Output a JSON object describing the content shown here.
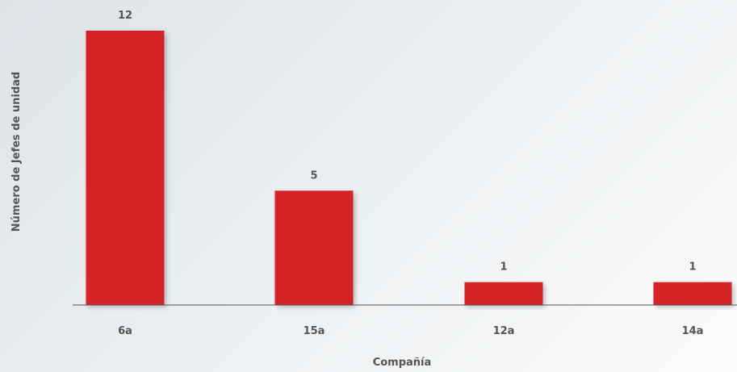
{
  "chart_data": {
    "type": "bar",
    "categories": [
      "6a",
      "15a",
      "12a",
      "14a"
    ],
    "values": [
      12,
      5,
      1,
      1
    ],
    "data_labels": [
      "12",
      "5",
      "1",
      "1"
    ],
    "title": "",
    "xlabel": "Compañía",
    "ylabel": "Número de Jefes de unidad",
    "ylim": [
      0,
      12
    ],
    "grid": false,
    "legend": "none",
    "bar_color": "#d42027",
    "text_color": "#555555",
    "axis_color": "#555555"
  }
}
